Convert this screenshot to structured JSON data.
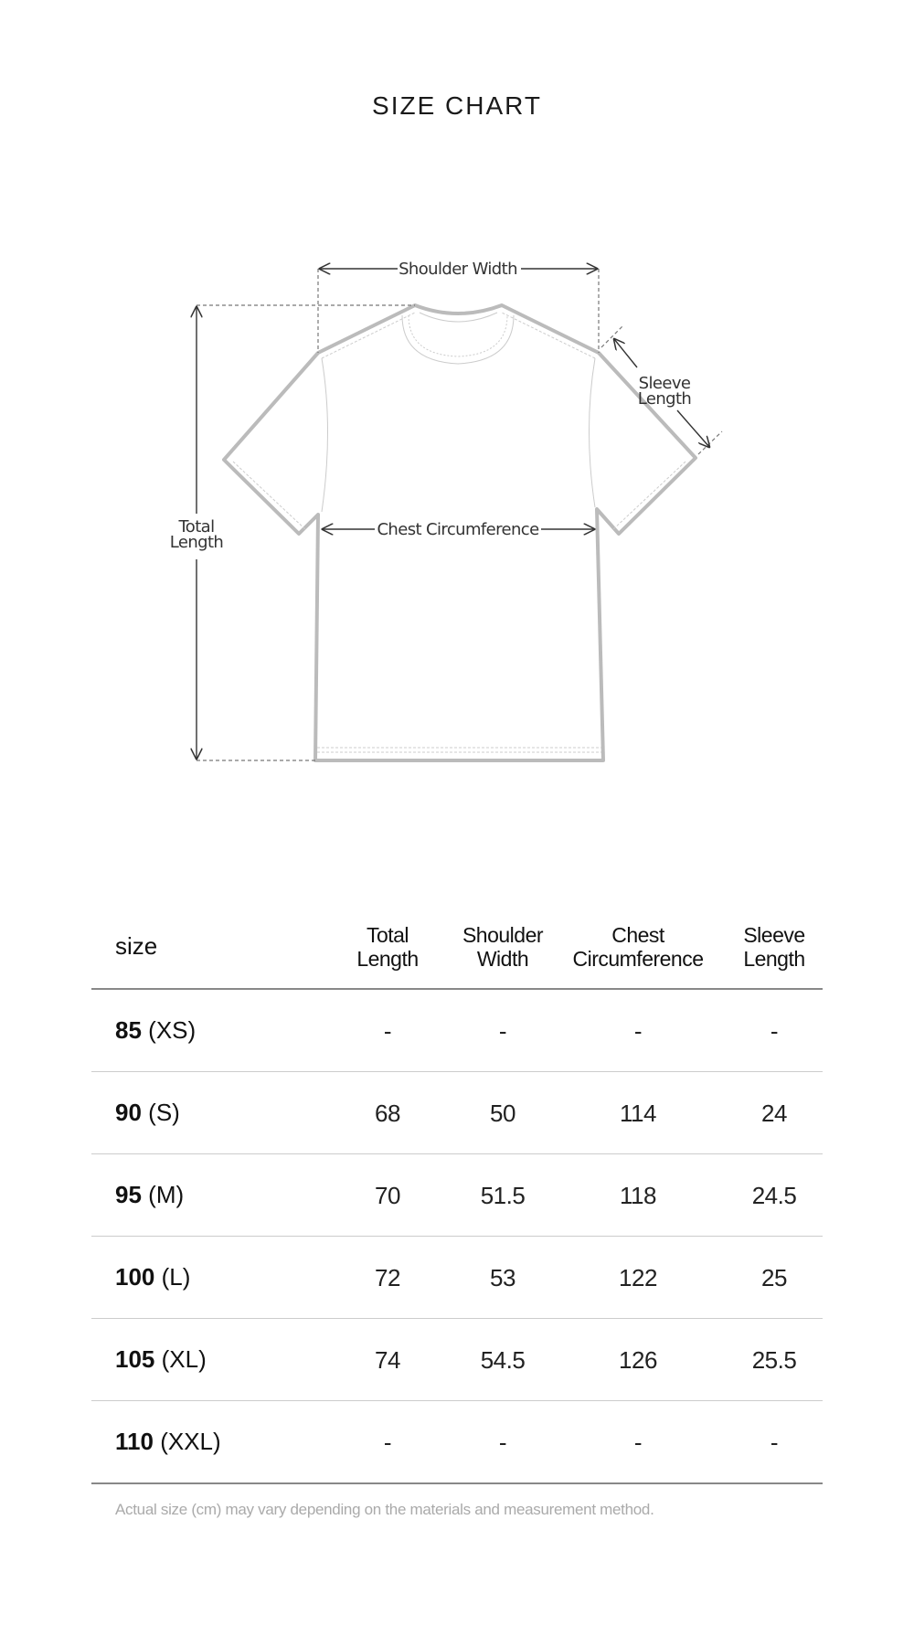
{
  "title": "SIZE CHART",
  "diagram": {
    "shoulder_width": "Shoulder Width",
    "total_length_1": "Total",
    "total_length_2": "Length",
    "chest": "Chest Circumference",
    "sleeve_1": "Sleeve",
    "sleeve_2": "Length"
  },
  "table": {
    "headers": [
      {
        "l1": "size"
      },
      {
        "l1": "Total",
        "l2": "Length"
      },
      {
        "l1": "Shoulder",
        "l2": "Width"
      },
      {
        "l1": "Chest",
        "l2": "Circumference"
      },
      {
        "l1": "Sleeve",
        "l2": "Length"
      }
    ],
    "rows": [
      {
        "num": "85",
        "label": "(XS)",
        "vals": [
          "-",
          "-",
          "-",
          "-"
        ]
      },
      {
        "num": "90",
        "label": "(S)",
        "vals": [
          "68",
          "50",
          "114",
          "24"
        ]
      },
      {
        "num": "95",
        "label": "(M)",
        "vals": [
          "70",
          "51.5",
          "118",
          "24.5"
        ]
      },
      {
        "num": "100",
        "label": "(L)",
        "vals": [
          "72",
          "53",
          "122",
          "25"
        ]
      },
      {
        "num": "105",
        "label": "(XL)",
        "vals": [
          "74",
          "54.5",
          "126",
          "25.5"
        ]
      },
      {
        "num": "110",
        "label": "(XXL)",
        "vals": [
          "-",
          "-",
          "-",
          "-"
        ]
      }
    ]
  },
  "note": "Actual size (cm) may vary depending on the materials and  measurement method."
}
